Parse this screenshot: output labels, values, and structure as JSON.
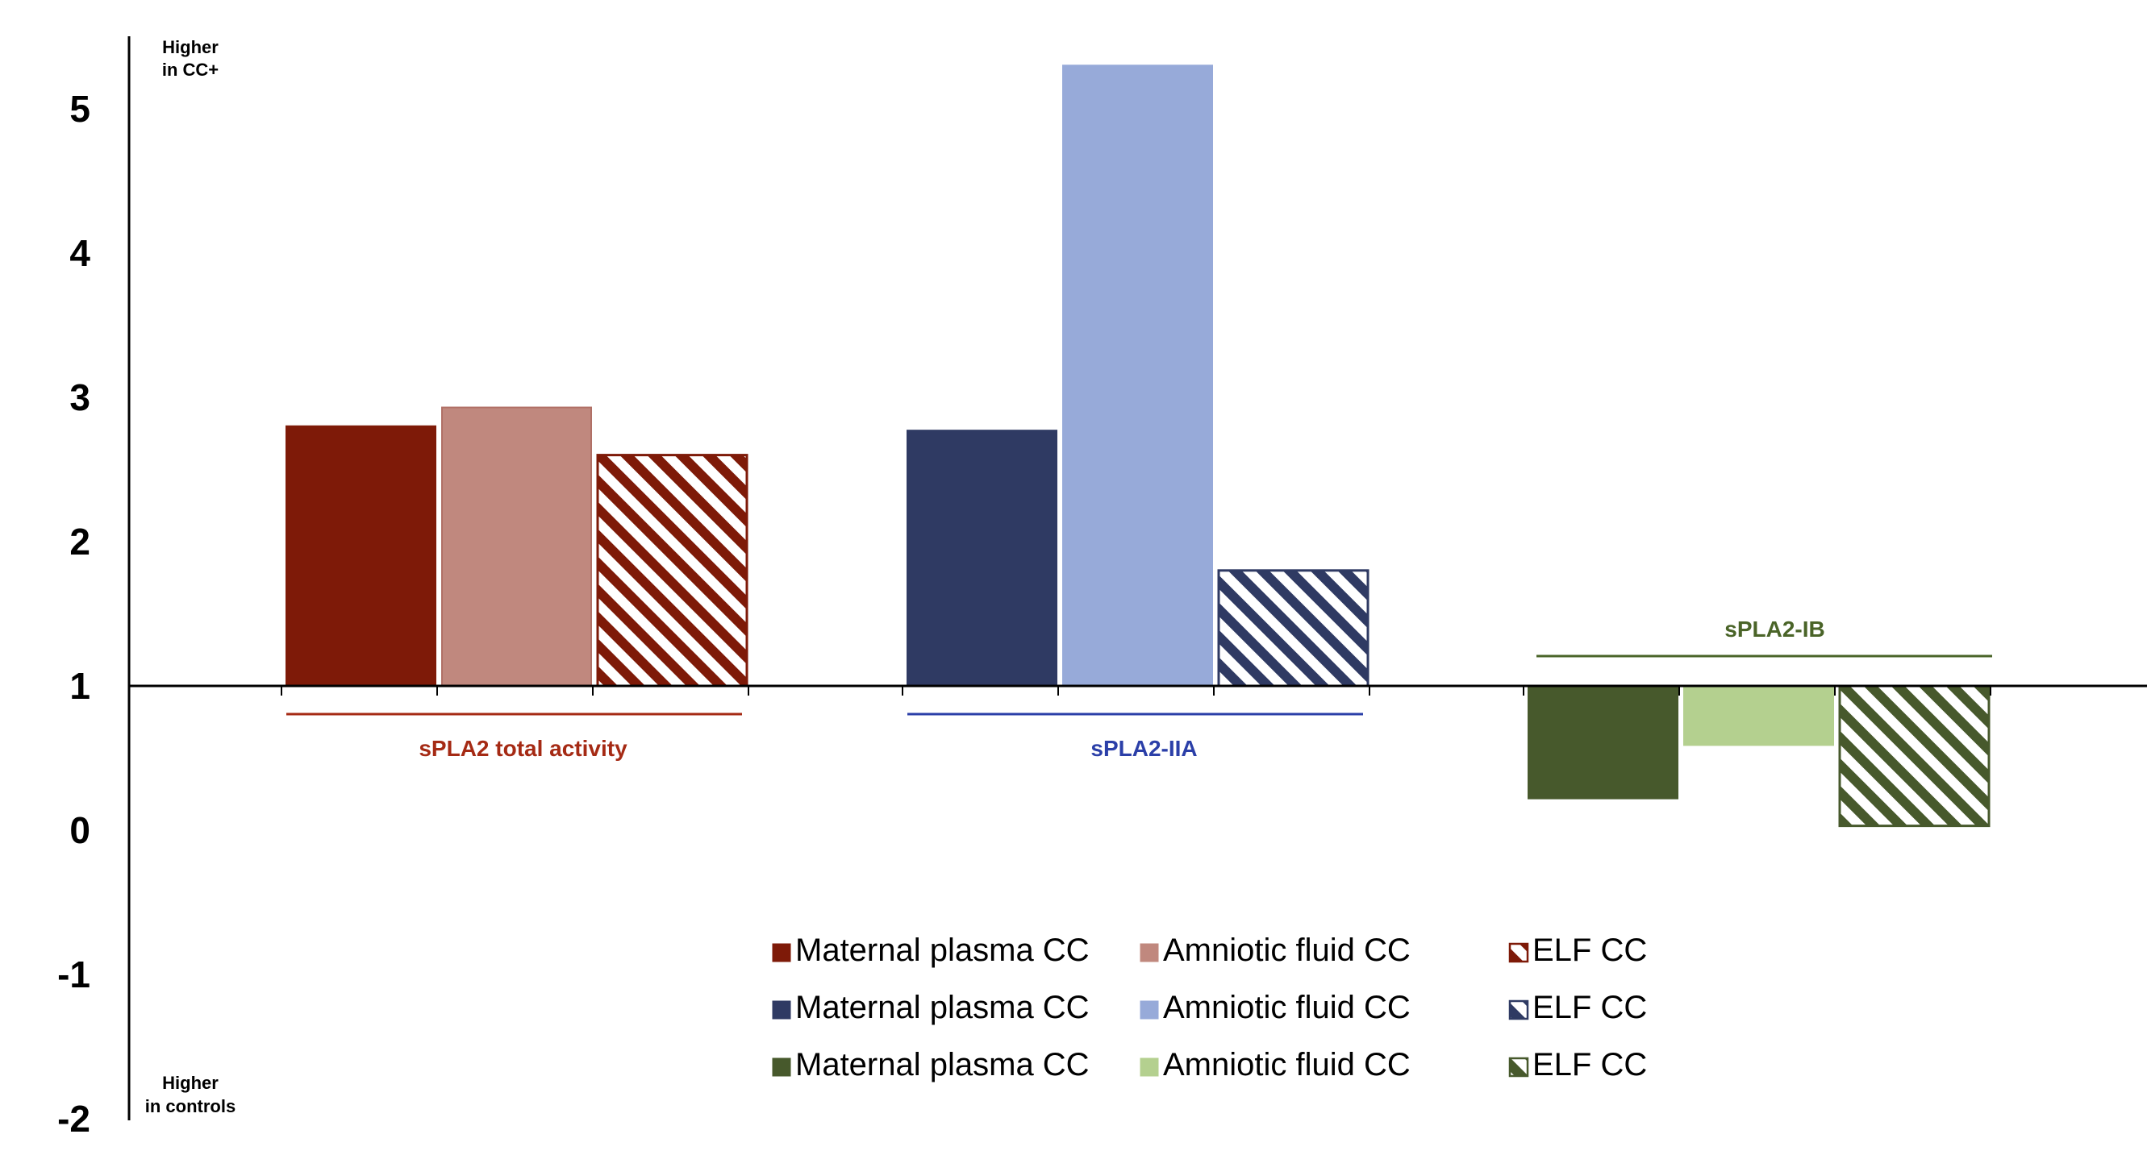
{
  "chart_data": {
    "type": "bar",
    "ylim": [
      -2,
      5.5
    ],
    "yticks": [
      "5",
      "4",
      "3",
      "2",
      "1",
      "0",
      "-1",
      "-2"
    ],
    "baseline": 1,
    "grid": false,
    "notes": {
      "top": [
        "Higher",
        "in CC+"
      ],
      "bottom": [
        "Higher",
        "in controls"
      ]
    },
    "groups": [
      {
        "label": "sPLA2 total activity",
        "color": "#A52A14",
        "bars": [
          {
            "series": "Maternal plasma CC",
            "value": 2.8,
            "fill": "#7E1A08",
            "pattern": "solid"
          },
          {
            "series": "Amniotic fluid CC",
            "value": 2.93,
            "fill": "#C0887E",
            "pattern": "solid"
          },
          {
            "series": "ELF CC",
            "value": 2.6,
            "fill": "#7E1A08",
            "pattern": "hatch"
          }
        ]
      },
      {
        "label": "sPLA2-IIA",
        "color": "#2B3FA8",
        "bars": [
          {
            "series": "Maternal plasma CC",
            "value": 2.77,
            "fill": "#2F3A63",
            "pattern": "solid"
          },
          {
            "series": "Amniotic fluid CC",
            "value": 5.3,
            "fill": "#97AAD9",
            "pattern": "solid"
          },
          {
            "series": "ELF CC",
            "value": 1.8,
            "fill": "#2F3A63",
            "pattern": "hatch"
          }
        ]
      },
      {
        "label": "sPLA2-IB",
        "color": "#4A6428",
        "bars": [
          {
            "series": "Maternal plasma CC",
            "value": 0.22,
            "fill": "#47592C",
            "pattern": "solid"
          },
          {
            "series": "Amniotic fluid CC",
            "value": 0.59,
            "fill": "#B4D08F",
            "pattern": "solid"
          },
          {
            "series": "ELF CC",
            "value": 0.03,
            "fill": "#47592C",
            "pattern": "hatch"
          }
        ]
      }
    ],
    "legend": [
      [
        "Maternal plasma CC",
        "Amniotic fluid CC",
        "ELF CC"
      ],
      [
        "Maternal plasma CC",
        "Amniotic fluid CC",
        "ELF CC"
      ],
      [
        "Maternal plasma CC",
        "Amniotic fluid CC",
        "ELF CC"
      ]
    ]
  }
}
